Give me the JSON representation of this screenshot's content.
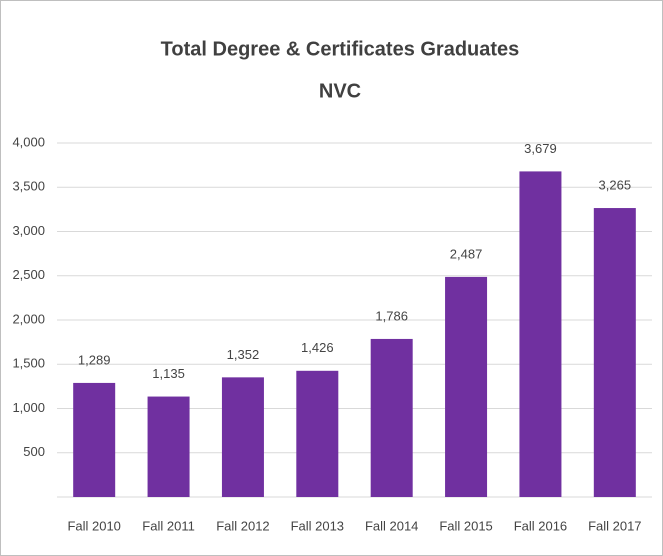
{
  "chart_data": {
    "type": "bar",
    "title": "Total Degree & Certificates Graduates",
    "subtitle": "NVC",
    "categories": [
      "Fall 2010",
      "Fall 2011",
      "Fall 2012",
      "Fall 2013",
      "Fall 2014",
      "Fall 2015",
      "Fall 2016",
      "Fall 2017"
    ],
    "values": [
      1289,
      1135,
      1352,
      1426,
      1786,
      2487,
      3679,
      3265
    ],
    "value_labels": [
      "1,289",
      "1,135",
      "1,352",
      "1,426",
      "1,786",
      "2,487",
      "3,679",
      "3,265"
    ],
    "color": "#7030a0",
    "ylim": [
      0,
      4000
    ],
    "yticks": [
      500,
      {
        "value": 1000,
        "label": "1,000"
      },
      {
        "value": 1500,
        "label": "1,500"
      },
      {
        "value": 2000,
        "label": "2,000"
      },
      {
        "value": 2500,
        "label": "2,500"
      },
      {
        "value": 3000,
        "label": "3,000"
      },
      {
        "value": 3500,
        "label": "3,500"
      },
      {
        "value": 4000,
        "label": "4,000"
      }
    ],
    "grid": true
  }
}
